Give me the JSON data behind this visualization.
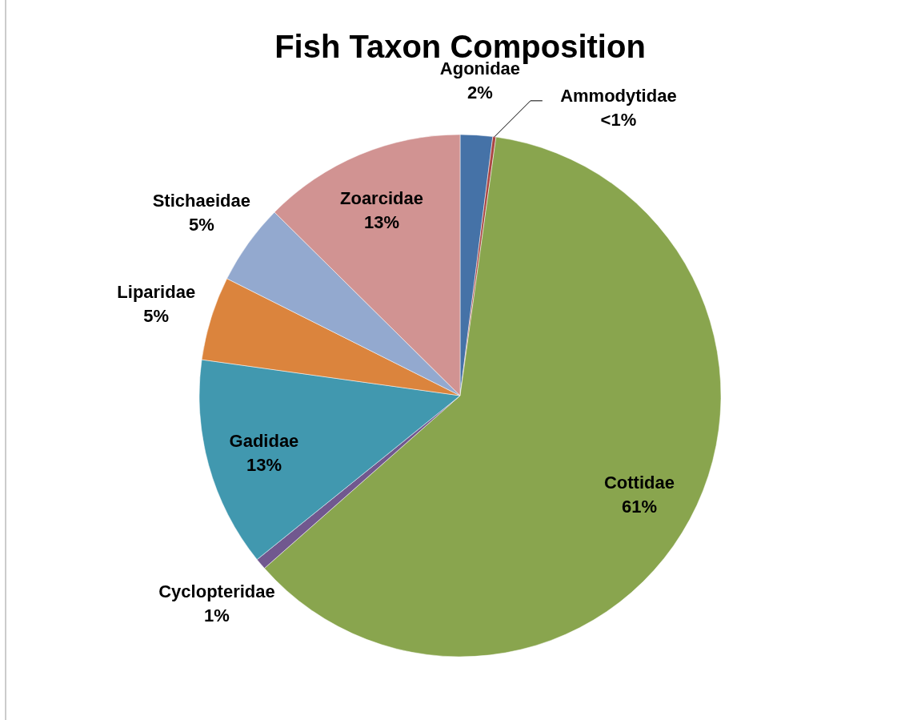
{
  "chart_data": {
    "type": "pie",
    "title": "Fish Taxon Composition",
    "categories": [
      "Agonidae",
      "Ammodytidae",
      "Cottidae",
      "Cyclopteridae",
      "Gadidae",
      "Liparidae",
      "Stichaeidae",
      "Zoarcidae"
    ],
    "values": [
      2,
      0.2,
      61.3,
      0.7,
      13,
      5.2,
      5,
      12.6
    ],
    "value_labels": [
      "2%",
      "<1%",
      "61%",
      "1%",
      "13%",
      "5%",
      "5%",
      "13%"
    ],
    "colors": [
      "#4572a7",
      "#aa4643",
      "#89a54e",
      "#71588f",
      "#4198af",
      "#db843d",
      "#93a9cf",
      "#d19392"
    ]
  }
}
